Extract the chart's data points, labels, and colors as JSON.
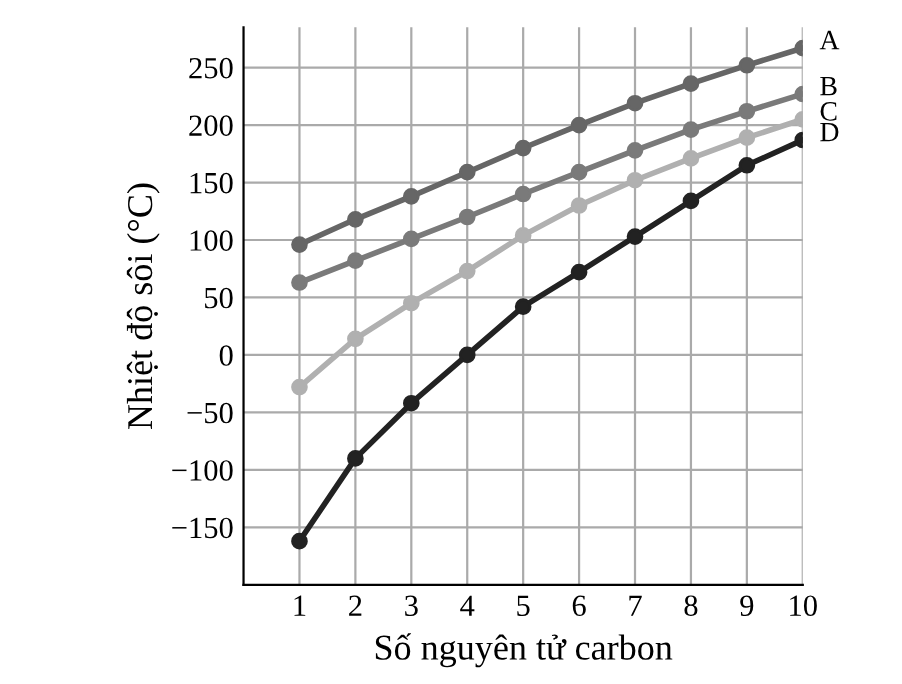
{
  "chart_data": {
    "type": "line",
    "xlabel": "Số nguyên tử carbon",
    "ylabel": "Nhiệt độ sôi (°C)",
    "x": [
      1,
      2,
      3,
      4,
      5,
      6,
      7,
      8,
      9,
      10
    ],
    "series": [
      {
        "name": "A",
        "color": "#666666",
        "values": [
          96,
          118,
          138,
          159,
          180,
          200,
          219,
          236,
          252,
          267
        ]
      },
      {
        "name": "B",
        "color": "#7a7a7a",
        "values": [
          63,
          82,
          101,
          120,
          140,
          159,
          178,
          196,
          212,
          227
        ]
      },
      {
        "name": "C",
        "color": "#b0b0b0",
        "values": [
          -28,
          14,
          45,
          73,
          104,
          130,
          152,
          171,
          189,
          205
        ]
      },
      {
        "name": "D",
        "color": "#222222",
        "values": [
          -162,
          -90,
          -42,
          0,
          42,
          72,
          103,
          134,
          165,
          187
        ]
      }
    ],
    "xlim": [
      0,
      10
    ],
    "xticks": [
      1,
      2,
      3,
      4,
      5,
      6,
      7,
      8,
      9,
      10
    ],
    "ylim": [
      -200,
      285
    ],
    "yticks": [
      -150,
      -100,
      -50,
      0,
      50,
      100,
      150,
      200,
      250
    ],
    "grid": true,
    "marker": "circle",
    "line_style": "solid",
    "legend": false
  }
}
